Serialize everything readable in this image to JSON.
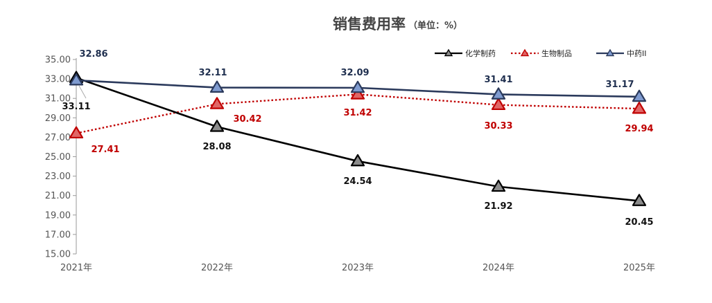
{
  "chart_data": {
    "type": "line",
    "title": "销售费用率",
    "subtitle": "（单位：%）",
    "xlabel": "",
    "ylabel": "",
    "categories": [
      "2021年",
      "2022年",
      "2023年",
      "2024年",
      "2025年"
    ],
    "ylim": [
      15.0,
      35.0
    ],
    "yticks": [
      "15.00",
      "17.00",
      "19.00",
      "21.00",
      "23.00",
      "25.00",
      "27.00",
      "29.00",
      "31.00",
      "33.00",
      "35.00"
    ],
    "legend_position": "top-right",
    "grid": false,
    "series": [
      {
        "name": "化学制药",
        "values": [
          33.11,
          28.08,
          24.54,
          21.92,
          20.45
        ],
        "labels": [
          "33.11",
          "28.08",
          "24.54",
          "21.92",
          "20.45"
        ],
        "line_color": "#000000",
        "marker_fill": "#8c8c8c",
        "label_color": "#111111",
        "dashed": false
      },
      {
        "name": "生物制品",
        "values": [
          27.41,
          30.42,
          31.42,
          30.33,
          29.94
        ],
        "labels": [
          "27.41",
          "30.42",
          "31.42",
          "30.33",
          "29.94"
        ],
        "line_color": "#c00000",
        "marker_fill": "#e06666",
        "label_color": "#c00000",
        "dashed": true
      },
      {
        "name": "中药II",
        "values": [
          32.86,
          32.11,
          32.09,
          31.41,
          31.17
        ],
        "labels": [
          "32.86",
          "32.11",
          "32.09",
          "31.41",
          "31.17"
        ],
        "line_color": "#2b3a5c",
        "marker_fill": "#7f9bd0",
        "label_color": "#1f2f4f",
        "dashed": false
      }
    ]
  }
}
